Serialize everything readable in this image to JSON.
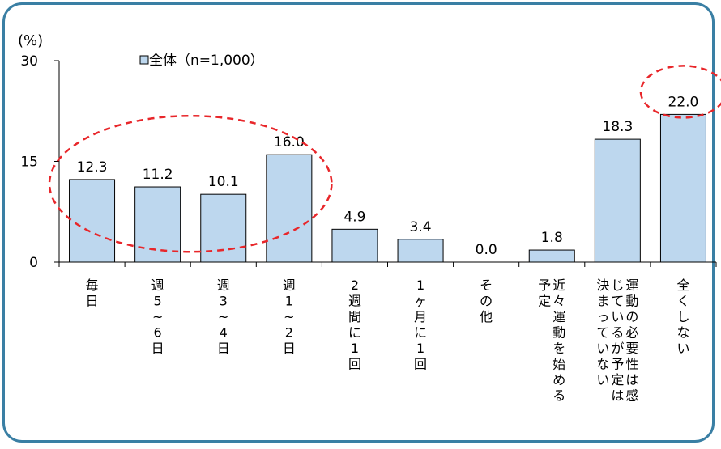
{
  "chart_data": {
    "type": "bar",
    "unit_label": "(%)",
    "ylim": [
      0,
      30
    ],
    "yticks": [
      "0",
      "15",
      "30"
    ],
    "legend": "全体（n=1,000）",
    "series": [
      {
        "name": "全体（n=1,000）",
        "values": [
          12.3,
          11.2,
          10.1,
          16.0,
          4.9,
          3.4,
          0.0,
          1.8,
          18.3,
          22.0
        ]
      }
    ],
    "value_labels": [
      "12.3",
      "11.2",
      "10.1",
      "16.0",
      "4.9",
      "3.4",
      "0.0",
      "1.8",
      "18.3",
      "22.0"
    ],
    "categories": [
      "毎日",
      "週5~6日",
      "週3~4日",
      "週1~2日",
      "2週間に1回",
      "1ヶ月に1回",
      "その他",
      "近々運動を始める予定",
      "運動の必要性は感じているが予定は決まっていない",
      "全くしない"
    ],
    "category_columns": [
      [
        [
          "毎",
          "日"
        ]
      ],
      [
        [
          "週",
          "5",
          "~",
          "6",
          "日"
        ]
      ],
      [
        [
          "週",
          "3",
          "~",
          "4",
          "日"
        ]
      ],
      [
        [
          "週",
          "1",
          "~",
          "2",
          "日"
        ]
      ],
      [
        [
          "2",
          "週",
          "間",
          "に",
          "1",
          "回"
        ]
      ],
      [
        [
          "1",
          "ヶ",
          "月",
          "に",
          "1",
          "回"
        ]
      ],
      [
        [
          "そ",
          "の",
          "他"
        ]
      ],
      [
        [
          "近",
          "々",
          "運",
          "動",
          "を",
          "始",
          "め",
          "る"
        ],
        [
          "予",
          "定"
        ]
      ],
      [
        [
          "運",
          "動",
          "の",
          "必",
          "要",
          "性",
          "は",
          "感"
        ],
        [
          "じ",
          "て",
          "い",
          "る",
          "が",
          "予",
          "定",
          "は"
        ],
        [
          "決",
          "ま",
          "っ",
          "て",
          "い",
          "な",
          "い"
        ]
      ],
      [
        [
          "全",
          "く",
          "し",
          "な",
          "い"
        ]
      ]
    ],
    "highlighted_groups": [
      [
        0,
        3
      ],
      [
        9,
        9
      ]
    ],
    "colors": {
      "bar_fill": "#bdd7ee",
      "bar_stroke": "#000000",
      "highlight": "#e8262a",
      "frame": "#3a7fa4"
    },
    "grid": false,
    "legend_position": "top-left"
  }
}
